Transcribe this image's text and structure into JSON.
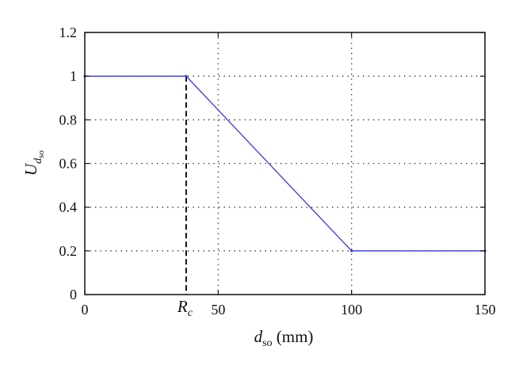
{
  "chart_data": {
    "type": "line",
    "x": [
      0,
      38,
      100,
      150
    ],
    "series": [
      {
        "values": [
          1,
          1,
          0.2,
          0.2
        ],
        "color": "#3a3ad6"
      }
    ],
    "xlim": [
      0,
      150
    ],
    "ylim": [
      0,
      1.2
    ],
    "xticks": [
      0,
      50,
      100,
      150
    ],
    "xtick_labels": [
      "0",
      "50",
      "100",
      "150"
    ],
    "yticks": [
      0,
      0.2,
      0.4,
      0.6,
      0.8,
      1,
      1.2
    ],
    "ytick_labels": [
      "0",
      "0.2",
      "0.4",
      "0.6",
      "0.8",
      "1",
      "1.2"
    ],
    "grid": true,
    "xlabel": {
      "main": "d",
      "sub": "so",
      "unit": " (mm)"
    },
    "ylabel": {
      "main": "U",
      "sub_d": "d",
      "sub_so": "so"
    },
    "annotations": [
      {
        "label_main": "R",
        "label_sub": "c",
        "x": 38,
        "y_top": 1,
        "style": "dashed"
      }
    ]
  }
}
